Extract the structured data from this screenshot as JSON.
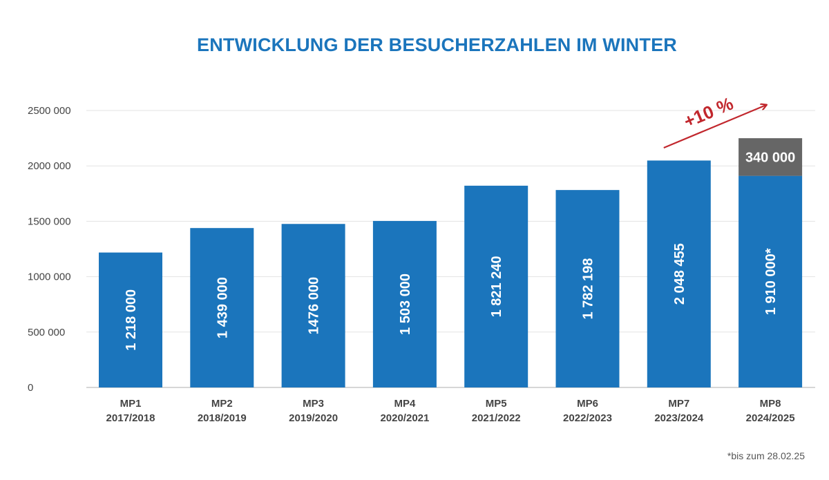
{
  "chart_data": {
    "type": "bar",
    "title": "ENTWICKLUNG DER BESUCHERZAHLEN IM WINTER",
    "xlabel": "",
    "ylabel": "",
    "ylim": [
      0,
      2500000
    ],
    "yticks": [
      {
        "value": 0,
        "label": "0"
      },
      {
        "value": 500000,
        "label": "500 000"
      },
      {
        "value": 1000000,
        "label": "1000 000"
      },
      {
        "value": 1500000,
        "label": "1500 000"
      },
      {
        "value": 2000000,
        "label": "2000 000"
      },
      {
        "value": 2500000,
        "label": "2500 000"
      }
    ],
    "categories": [
      {
        "name": "MP1",
        "season": "2017/2018"
      },
      {
        "name": "MP2",
        "season": "2018/2019"
      },
      {
        "name": "MP3",
        "season": "2019/2020"
      },
      {
        "name": "MP4",
        "season": "2020/2021"
      },
      {
        "name": "MP5",
        "season": "2021/2022"
      },
      {
        "name": "MP6",
        "season": "2022/2023"
      },
      {
        "name": "MP7",
        "season": "2023/2024"
      },
      {
        "name": "MP8",
        "season": "2024/2025"
      }
    ],
    "values": [
      1218000,
      1439000,
      1476000,
      1503000,
      1821240,
      1782198,
      2048455,
      1910000
    ],
    "value_labels": [
      "1 218 000",
      "1 439 000",
      "1476 000",
      "1 503 000",
      "1 821 240",
      "1 782 198",
      "2 048 455",
      "1 910 000*"
    ],
    "stacked_extra": {
      "category_index": 7,
      "value": 340000,
      "label": "340 000"
    },
    "annotation": {
      "text": "+10 %",
      "from_category_index": 6,
      "to_category_index": 7
    },
    "colors": {
      "bar": "#1b75bc",
      "extra": "#666666",
      "annotation": "#c1272d",
      "grid": "#e3e3e3",
      "axis": "#c8c8c8"
    }
  },
  "footnote": "*bis zum 28.02.25"
}
